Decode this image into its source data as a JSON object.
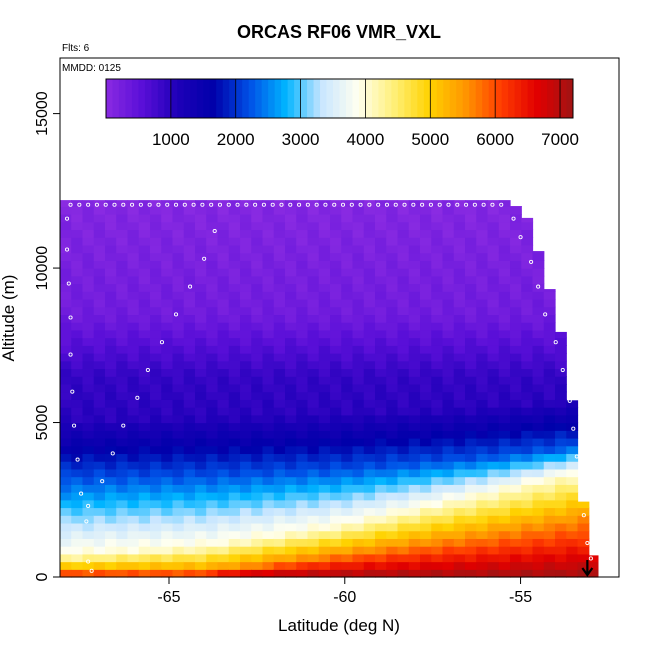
{
  "chart_data": {
    "type": "heatmap",
    "title": "ORCAS RF06 VMR_VXL",
    "flights_label": "Flts: 6",
    "date_label": "MMDD: 0125",
    "xlabel": "Latitude (deg N)",
    "ylabel": "Altitude (m)",
    "xlim": [
      -68.1,
      -52.2
    ],
    "ylim": [
      0,
      16800
    ],
    "x_ticks": [
      -65,
      -60,
      -55
    ],
    "y_ticks": [
      0,
      5000,
      10000,
      15000
    ],
    "x_tick_labels": [
      "-65",
      "-60",
      "-55"
    ],
    "y_tick_labels": [
      "0",
      "5000",
      "10000",
      "15000"
    ],
    "colorbar": {
      "range": [
        0,
        7200
      ],
      "ticks": [
        1000,
        2000,
        3000,
        4000,
        5000,
        6000,
        7000
      ],
      "tick_labels": [
        "1000",
        "2000",
        "3000",
        "4000",
        "5000",
        "6000",
        "7000"
      ],
      "colors": [
        "#8A2BE2",
        "#5A0FD8",
        "#1E00B8",
        "#0000AA",
        "#0050E6",
        "#00B4FF",
        "#C8E6FF",
        "#FFFFF0",
        "#FFF07A",
        "#FFD200",
        "#FF9600",
        "#FF3C00",
        "#E10000",
        "#A01414"
      ]
    },
    "field": {
      "lat_start": -68.1,
      "lat_end": -52.8,
      "lat_step": 0.32,
      "alt_step": 250,
      "ceiling_profile": [
        {
          "lat": -68.1,
          "alt": 12200
        },
        {
          "lat": -55.3,
          "alt": 12200
        },
        {
          "lat": -54.8,
          "alt": 11600
        },
        {
          "lat": -54.4,
          "alt": 10200
        },
        {
          "lat": -53.9,
          "alt": 8200
        },
        {
          "lat": -53.6,
          "alt": 6200
        },
        {
          "lat": -53.4,
          "alt": 4600
        },
        {
          "lat": -53.2,
          "alt": 2200
        },
        {
          "lat": -52.8,
          "alt": 200
        }
      ],
      "boundary_profile": [
        {
          "lat": -68.1,
          "alt_8": 160,
          "alt_4": 700,
          "alt_2": 3200,
          "alt_1": 5100
        },
        {
          "lat": -64.0,
          "alt_8": 160,
          "alt_4": 1000,
          "alt_2": 3300,
          "alt_1": 5200
        },
        {
          "lat": -60.0,
          "alt_8": 750,
          "alt_4": 1700,
          "alt_2": 3500,
          "alt_1": 5300
        },
        {
          "lat": -56.0,
          "alt_8": 1350,
          "alt_4": 2700,
          "alt_2": 3900,
          "alt_1": 5500
        },
        {
          "lat": -53.0,
          "alt_8": 1900,
          "alt_4": 3500,
          "alt_2": 4300,
          "alt_1": 5800
        }
      ],
      "upper_values": {
        "alt_6500": 900,
        "alt_8500": 300,
        "alt_12000": 80
      }
    },
    "flight_track": {
      "ceiling_alt": 12050,
      "points": [
        {
          "lat": -67.9,
          "alt": 11600
        },
        {
          "lat": -67.9,
          "alt": 10600
        },
        {
          "lat": -67.85,
          "alt": 9500
        },
        {
          "lat": -67.8,
          "alt": 8400
        },
        {
          "lat": -67.8,
          "alt": 7200
        },
        {
          "lat": -67.75,
          "alt": 6000
        },
        {
          "lat": -67.7,
          "alt": 4900
        },
        {
          "lat": -67.6,
          "alt": 3800
        },
        {
          "lat": -67.5,
          "alt": 2700
        },
        {
          "lat": -67.35,
          "alt": 1800
        },
        {
          "lat": -67.3,
          "alt": 500
        },
        {
          "lat": -67.2,
          "alt": 200
        },
        {
          "lat": -67.3,
          "alt": 2300
        },
        {
          "lat": -66.9,
          "alt": 3100
        },
        {
          "lat": -66.6,
          "alt": 4000
        },
        {
          "lat": -66.3,
          "alt": 4900
        },
        {
          "lat": -65.9,
          "alt": 5800
        },
        {
          "lat": -65.6,
          "alt": 6700
        },
        {
          "lat": -65.2,
          "alt": 7600
        },
        {
          "lat": -64.8,
          "alt": 8500
        },
        {
          "lat": -64.4,
          "alt": 9400
        },
        {
          "lat": -64.0,
          "alt": 10300
        },
        {
          "lat": -63.7,
          "alt": 11200
        },
        {
          "lat": -55.2,
          "alt": 11600
        },
        {
          "lat": -55.0,
          "alt": 11000
        },
        {
          "lat": -54.7,
          "alt": 10200
        },
        {
          "lat": -54.5,
          "alt": 9400
        },
        {
          "lat": -54.3,
          "alt": 8500
        },
        {
          "lat": -54.0,
          "alt": 7600
        },
        {
          "lat": -53.8,
          "alt": 6700
        },
        {
          "lat": -53.6,
          "alt": 5700
        },
        {
          "lat": -53.5,
          "alt": 4800
        },
        {
          "lat": -53.4,
          "alt": 3900
        },
        {
          "lat": -53.3,
          "alt": 2900
        },
        {
          "lat": -53.2,
          "alt": 2000
        },
        {
          "lat": -53.1,
          "alt": 1100
        },
        {
          "lat": -53.0,
          "alt": 600
        }
      ]
    },
    "landing_marker": {
      "lat": -53.1,
      "alt": 550
    }
  }
}
